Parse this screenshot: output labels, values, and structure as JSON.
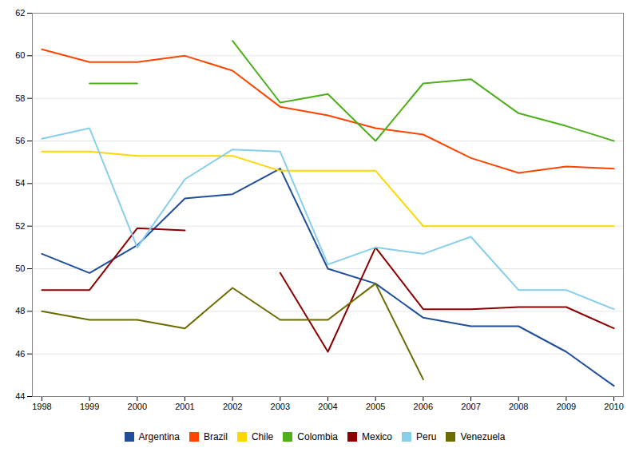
{
  "chart_data": {
    "type": "line",
    "x": [
      1998,
      1999,
      2000,
      2001,
      2002,
      2003,
      2004,
      2005,
      2006,
      2007,
      2008,
      2009,
      2010
    ],
    "series": [
      {
        "name": "Argentina",
        "color": "#1F4E9C",
        "values": [
          50.7,
          49.8,
          51.1,
          53.3,
          53.5,
          54.7,
          50.0,
          49.3,
          47.7,
          47.3,
          47.3,
          46.1,
          44.5
        ]
      },
      {
        "name": "Brazil",
        "color": "#FF4500",
        "values": [
          60.3,
          59.7,
          59.7,
          60.0,
          59.3,
          57.6,
          57.2,
          56.6,
          56.3,
          55.2,
          54.5,
          54.8,
          54.7
        ]
      },
      {
        "name": "Chile",
        "color": "#FFD700",
        "values": [
          55.5,
          55.5,
          55.3,
          55.3,
          55.3,
          54.6,
          54.6,
          54.6,
          52.0,
          52.0,
          52.0,
          52.0,
          52.0
        ]
      },
      {
        "name": "Colombia",
        "color": "#4DAF1A",
        "values": [
          null,
          58.7,
          58.7,
          null,
          60.7,
          57.8,
          58.2,
          56.0,
          58.7,
          58.9,
          57.3,
          56.7,
          56.0
        ]
      },
      {
        "name": "Mexico",
        "color": "#8B0000",
        "values": [
          49.0,
          49.0,
          51.9,
          51.8,
          null,
          49.8,
          46.1,
          51.0,
          48.1,
          48.1,
          48.2,
          48.2,
          47.2
        ]
      },
      {
        "name": "Peru",
        "color": "#87CEEB",
        "values": [
          56.1,
          56.6,
          51.0,
          54.2,
          55.6,
          55.5,
          50.2,
          51.0,
          50.7,
          51.5,
          49.0,
          49.0,
          48.1
        ]
      },
      {
        "name": "Venezuela",
        "color": "#6B6B00",
        "values": [
          48.0,
          47.6,
          47.6,
          47.2,
          49.1,
          47.6,
          47.6,
          49.3,
          44.8,
          null,
          null,
          null,
          null
        ]
      }
    ],
    "xlim": [
      1997.8,
      2010.2
    ],
    "xticks": [
      1998,
      1999,
      2000,
      2001,
      2002,
      2003,
      2004,
      2005,
      2006,
      2007,
      2008,
      2009,
      2010
    ],
    "ylim": [
      44,
      62
    ],
    "yticks": [
      44,
      46,
      48,
      50,
      52,
      54,
      56,
      58,
      60,
      62
    ],
    "grid": true,
    "legend": "bottom"
  }
}
